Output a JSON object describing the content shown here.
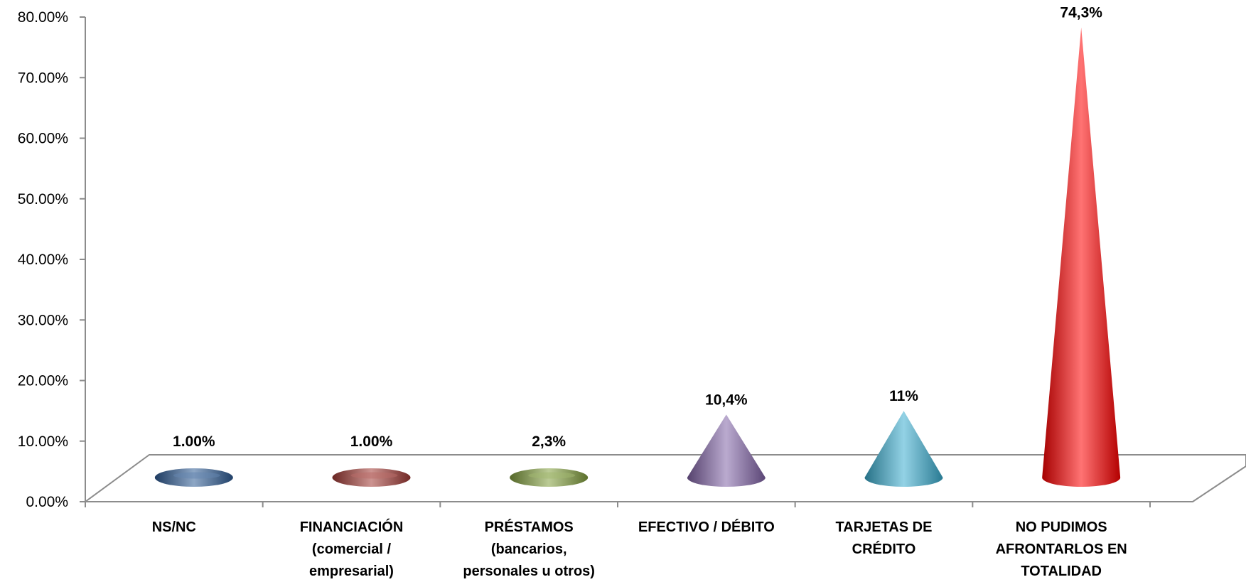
{
  "chart_data": {
    "type": "bar",
    "style": "3d-cone",
    "title": "",
    "xlabel": "",
    "ylabel": "",
    "ylim": [
      0,
      80
    ],
    "yticks": [
      "0.00%",
      "10.00%",
      "20.00%",
      "30.00%",
      "40.00%",
      "50.00%",
      "60.00%",
      "70.00%",
      "80.00%"
    ],
    "grid": false,
    "legend": "none",
    "categories": [
      [
        "NS/NC"
      ],
      [
        "FINANCIACIÓN",
        "(comercial /",
        "empresarial)"
      ],
      [
        "PRÉSTAMOS",
        "(bancarios,",
        "personales u otros)"
      ],
      [
        "EFECTIVO / DÉBITO"
      ],
      [
        "TARJETAS DE",
        "CRÉDITO"
      ],
      [
        "NO PUDIMOS",
        "AFRONTARLOS EN",
        "TOTALIDAD"
      ]
    ],
    "values": [
      1.0,
      1.0,
      2.3,
      10.4,
      11.0,
      74.3
    ],
    "data_labels": [
      "1.00%",
      "1.00%",
      "2,3%",
      "10,4%",
      "11%",
      "74,3%"
    ],
    "colors": [
      "#2f5d96",
      "#a33a36",
      "#83a03f",
      "#8264a8",
      "#3aaed0",
      "#ff0000"
    ]
  }
}
